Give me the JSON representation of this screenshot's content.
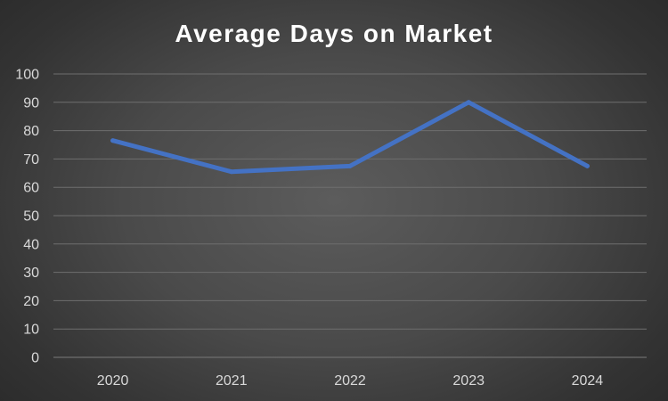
{
  "chart_data": {
    "type": "line",
    "title": "Average Days on Market",
    "xlabel": "",
    "ylabel": "",
    "categories": [
      "2020",
      "2021",
      "2022",
      "2023",
      "2024"
    ],
    "series": [
      {
        "values": [
          76.5,
          65.5,
          67.5,
          90,
          67.5
        ]
      }
    ],
    "ylim": [
      0,
      100
    ],
    "yticks": [
      "0",
      "10",
      "20",
      "30",
      "40",
      "50",
      "60",
      "70",
      "80",
      "90",
      "100"
    ],
    "grid": true,
    "legend": "none",
    "colors": {
      "line": "#4472C4",
      "grid": "#6e6e6e",
      "text": "#d9d9d9",
      "title": "#ffffff"
    }
  }
}
